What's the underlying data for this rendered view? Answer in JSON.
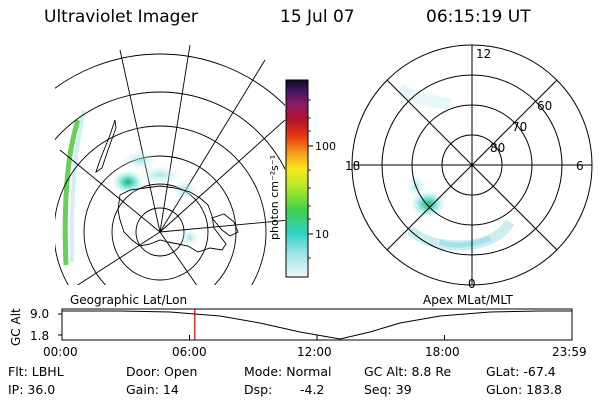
{
  "header": {
    "title": "Ultraviolet Imager",
    "date": "15 Jul 07",
    "time": "06:15:19 UT"
  },
  "left_panel": {
    "label": "Geographic Lat/Lon"
  },
  "right_panel": {
    "label": "Apex MLat/MLT",
    "mlt_labels": [
      "12",
      "18",
      "6",
      "0"
    ],
    "lat_labels": [
      "60",
      "70",
      "80"
    ]
  },
  "colorbar": {
    "unit": "photon cm⁻²s⁻¹",
    "ticks": [
      "100",
      "10"
    ]
  },
  "altitude_plot": {
    "axis_label": "GC Alt",
    "y_ticks": [
      "9.0",
      "1.8"
    ],
    "x_ticks": [
      "00:00",
      "06:00",
      "12:00",
      "18:00",
      "23:59"
    ],
    "current_time_hours": 6.25
  },
  "info": {
    "flt": "Flt: LBHL",
    "door": "Door: Open",
    "mode": "Mode: Normal",
    "gc_alt": "GC Alt: 8.8 Re",
    "glat": "GLat: -67.4",
    "ip": "IP: 36.0",
    "gain": "Gain: 14",
    "dsp_label": "Dsp:",
    "dsp_value": "-4.2",
    "seq": "Seq: 39",
    "glon": "GLon: 183.8"
  },
  "colors": {
    "grid": "#000000",
    "marker": "#cc0000",
    "aurora_light": "#bfe8ee",
    "aurora_mid": "#33d6c4",
    "aurora_green": "#4cc83a"
  }
}
